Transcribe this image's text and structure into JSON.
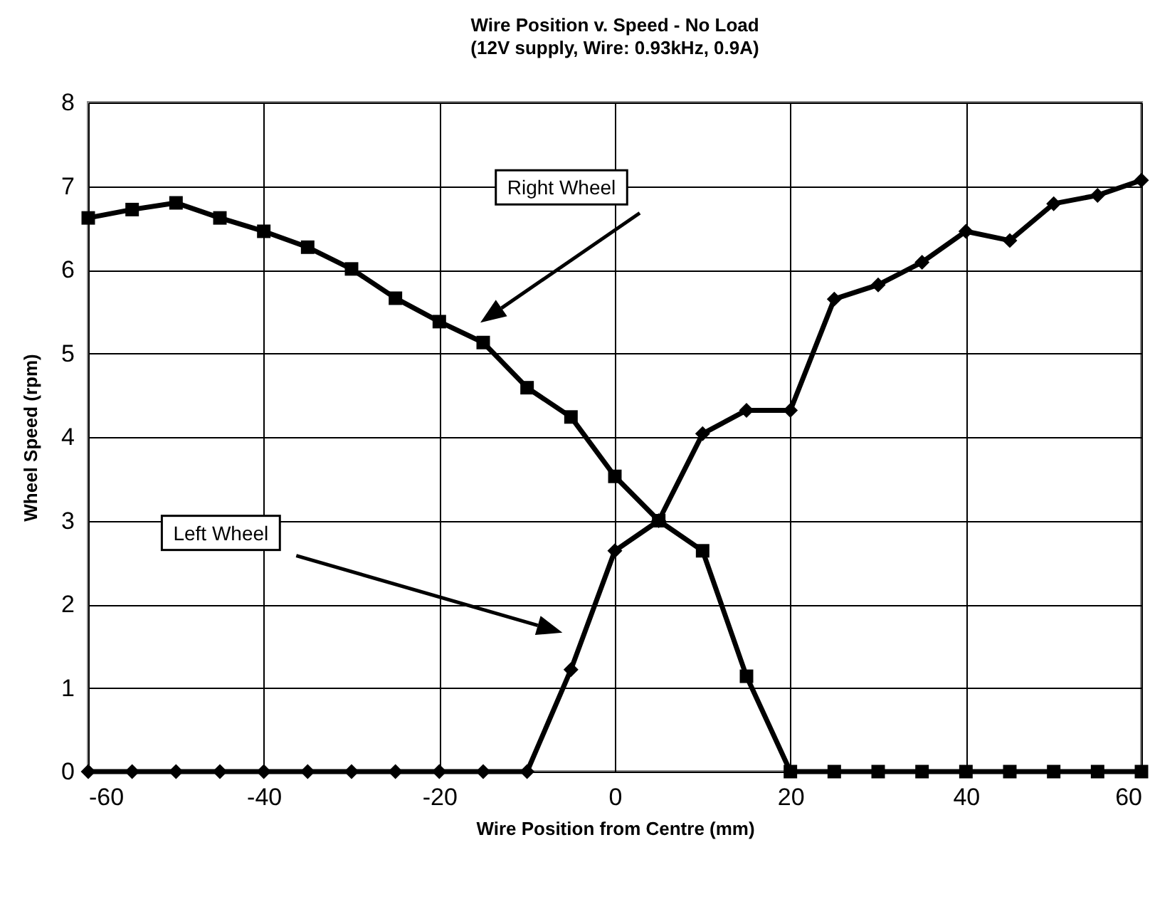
{
  "chart_data": {
    "type": "line",
    "title": "Wire Position v. Speed - No Load",
    "subtitle": "(12V supply, Wire: 0.93kHz, 0.9A)",
    "xlabel": "Wire Position from Centre (mm)",
    "ylabel": "Wheel Speed (rpm)",
    "x": [
      -60,
      -55,
      -50,
      -45,
      -40,
      -35,
      -30,
      -25,
      -20,
      -15,
      -10,
      -5,
      0,
      5,
      10,
      15,
      20,
      25,
      30,
      35,
      40,
      45,
      50,
      55,
      60
    ],
    "series": [
      {
        "color": "#000000",
        "marker": "square",
        "values": [
          6.62,
          6.72,
          6.8,
          6.62,
          6.46,
          6.27,
          6.01,
          5.66,
          5.38,
          5.13,
          4.59,
          4.24,
          3.53,
          3.0,
          2.64,
          1.14,
          0,
          0,
          0,
          0,
          0,
          0,
          0,
          0,
          0
        ]
      },
      {
        "color": "#000000",
        "marker": "diamond",
        "values": [
          0,
          0,
          0,
          0,
          0,
          0,
          0,
          0,
          0,
          0,
          0,
          1.22,
          2.64,
          3.0,
          4.04,
          4.32,
          4.32,
          5.65,
          5.82,
          6.09,
          6.46,
          6.35,
          6.79,
          6.89,
          7.07
        ]
      }
    ],
    "annotations": [
      "Right Wheel",
      "Left Wheel"
    ],
    "xlim": [
      -60,
      60
    ],
    "xticks": [
      -60,
      -40,
      -20,
      0,
      20,
      40,
      60
    ],
    "ylim": [
      0,
      8
    ],
    "yticks": [
      0,
      1,
      2,
      3,
      4,
      5,
      6,
      7,
      8
    ],
    "grid": true,
    "line_style": "solid"
  }
}
